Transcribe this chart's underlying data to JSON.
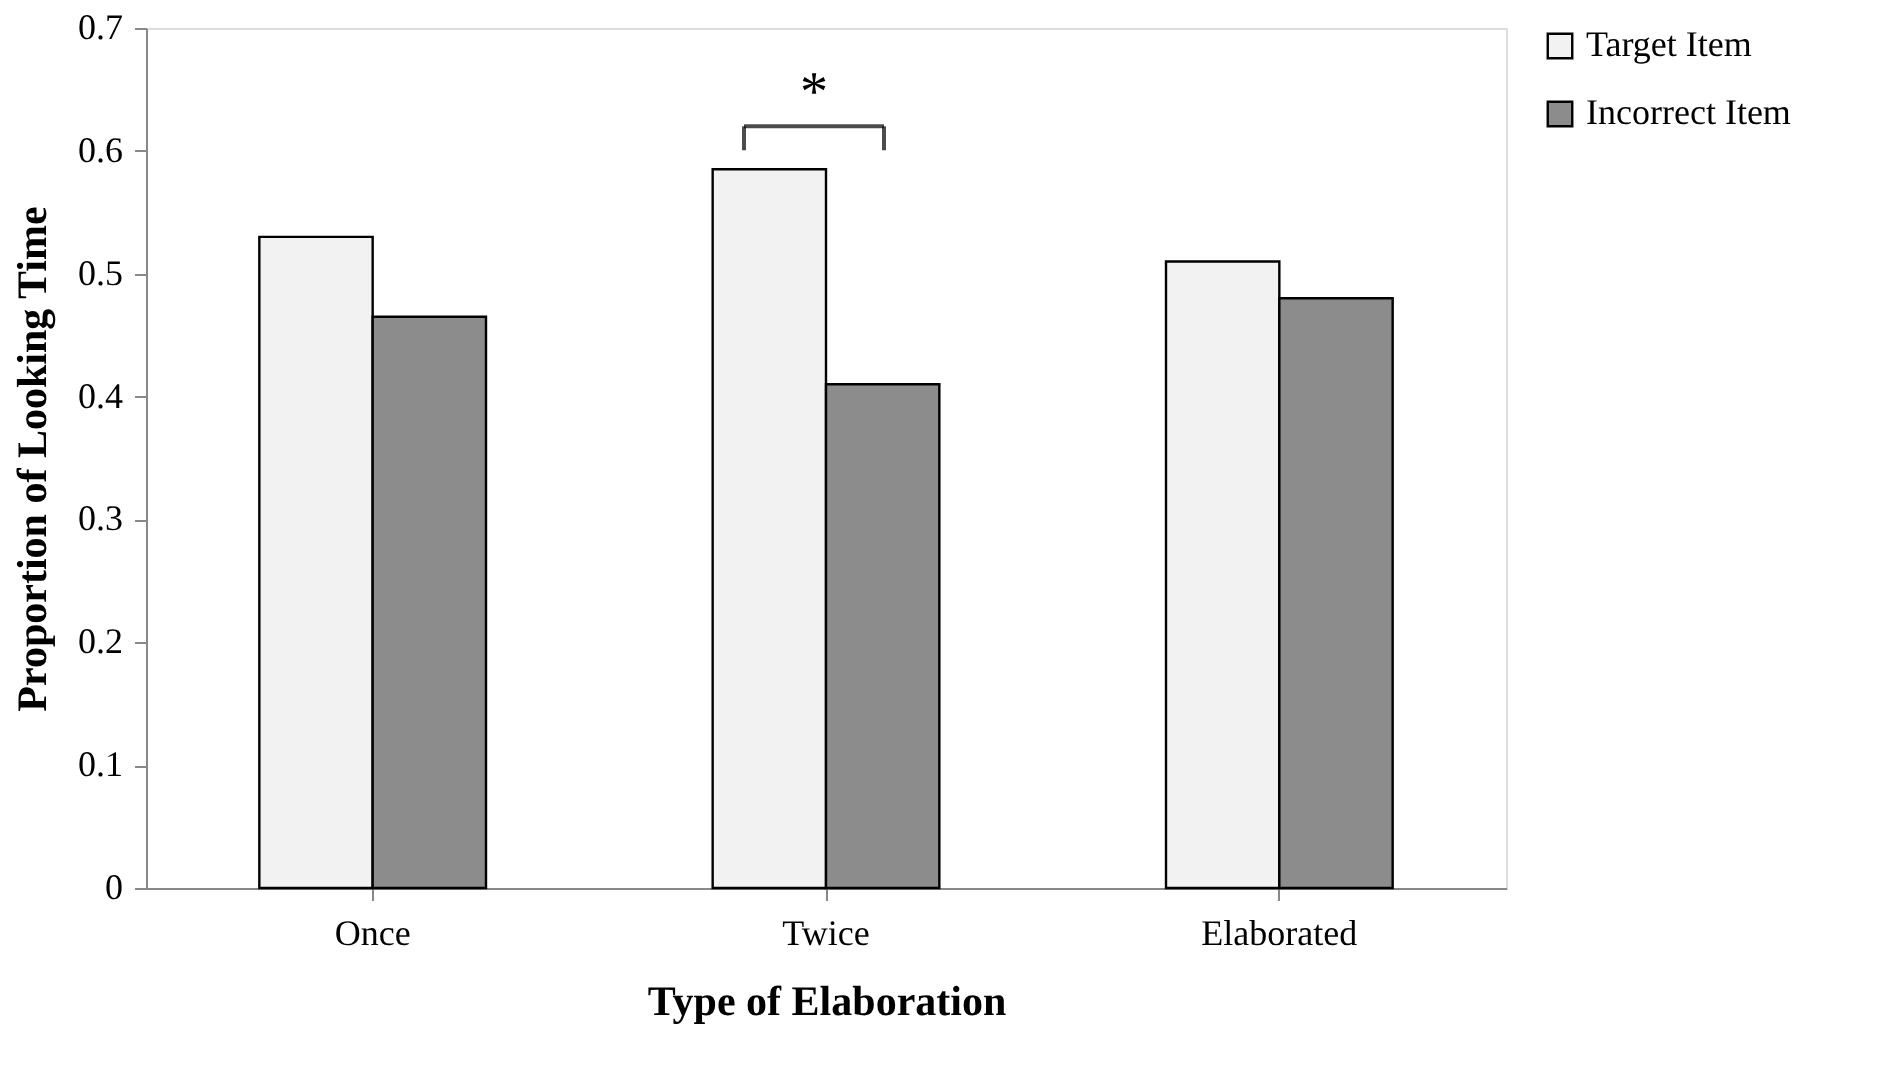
{
  "chart_data": {
    "type": "bar",
    "xlabel": "Type of Elaboration",
    "ylabel": "Proportion of Looking Time",
    "categories": [
      "Once",
      "Twice",
      "Elaborated"
    ],
    "series": [
      {
        "name": "Target Item",
        "color": "#f2f2f2",
        "values": [
          0.53,
          0.585,
          0.51
        ]
      },
      {
        "name": "Incorrect Item",
        "color": "#8c8c8c",
        "values": [
          0.465,
          0.41,
          0.48
        ]
      }
    ],
    "ylim": [
      0,
      0.7
    ],
    "yticks": [
      0,
      0.1,
      0.2,
      0.3,
      0.4,
      0.5,
      0.6,
      0.7
    ],
    "grid": false,
    "legend": "right",
    "annotations": [
      "*"
    ]
  }
}
